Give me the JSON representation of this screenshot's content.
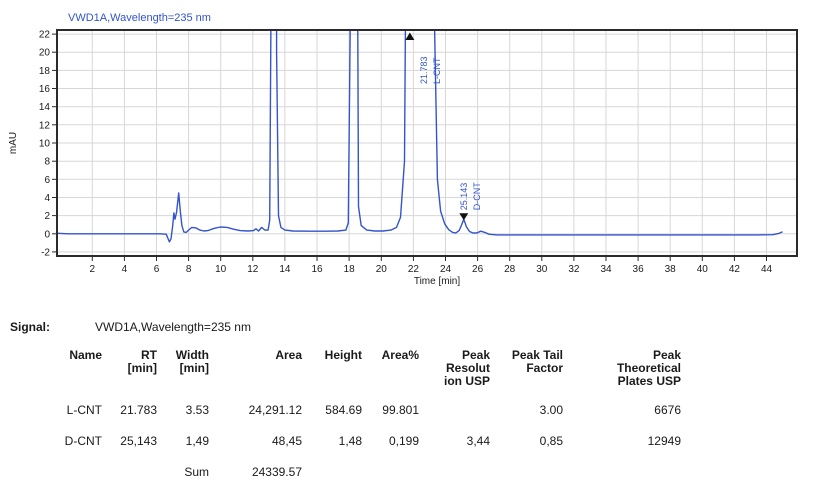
{
  "signal": {
    "label": "Signal:",
    "value": "VWD1A,Wavelength=235 nm"
  },
  "table": {
    "headers": [
      "Name",
      "RT\n[min]",
      "Width\n[min]",
      "Area",
      "Height",
      "Area%",
      "Peak\nResolut\nion USP",
      "Peak Tail\nFactor",
      "Peak\nTheoretical\nPlates USP"
    ],
    "rows": [
      [
        "L-CNT",
        "21.783",
        "3.53",
        "24,291.12",
        "584.69",
        "99.801",
        "",
        "3.00",
        "6676"
      ],
      [
        "D-CNT",
        "25,143",
        "1,49",
        "48,45",
        "1,48",
        "0,199",
        "3,44",
        "0,85",
        "12949"
      ]
    ],
    "sum_row": {
      "label": "Sum",
      "area": "24339.57"
    }
  },
  "chart_data": {
    "type": "line",
    "title": "VWD1A,Wavelength=235 nm",
    "xlabel": "Time [min]",
    "ylabel": "mAU",
    "xlim": [
      -0.2,
      45.9
    ],
    "ylim": [
      -2.45,
      22.45
    ],
    "x_ticks": [
      2,
      4,
      6,
      8,
      10,
      12,
      14,
      16,
      18,
      20,
      22,
      24,
      26,
      28,
      30,
      32,
      34,
      36,
      38,
      40,
      42,
      44
    ],
    "y_ticks": [
      -2,
      0,
      2,
      4,
      6,
      8,
      10,
      12,
      14,
      16,
      18,
      20,
      22
    ],
    "grid": true,
    "colors": {
      "trace": "#3354cc",
      "grid": "#d7d7d7",
      "frame": "#2b2b2b",
      "text": "#1a1a1a",
      "marker": "#111111"
    },
    "series": [
      {
        "name": "VWD1A,Wavelength=235 nm",
        "points": [
          [
            -0.15,
            0.05
          ],
          [
            0.5,
            0
          ],
          [
            1.5,
            0
          ],
          [
            2.5,
            0
          ],
          [
            3.5,
            0
          ],
          [
            4.5,
            0
          ],
          [
            5.5,
            0
          ],
          [
            6.2,
            0
          ],
          [
            6.6,
            -0.05
          ],
          [
            6.8,
            -0.9
          ],
          [
            6.9,
            -0.55
          ],
          [
            7.0,
            0.8
          ],
          [
            7.08,
            2.3
          ],
          [
            7.15,
            1.6
          ],
          [
            7.25,
            2.4
          ],
          [
            7.38,
            4.5
          ],
          [
            7.48,
            2.5
          ],
          [
            7.58,
            0.9
          ],
          [
            7.7,
            0.2
          ],
          [
            7.85,
            0.15
          ],
          [
            8.0,
            0.4
          ],
          [
            8.2,
            0.7
          ],
          [
            8.45,
            0.65
          ],
          [
            8.7,
            0.4
          ],
          [
            8.95,
            0.3
          ],
          [
            9.2,
            0.35
          ],
          [
            9.6,
            0.6
          ],
          [
            10.0,
            0.75
          ],
          [
            10.4,
            0.7
          ],
          [
            10.8,
            0.5
          ],
          [
            11.2,
            0.35
          ],
          [
            11.7,
            0.3
          ],
          [
            12.05,
            0.35
          ],
          [
            12.2,
            0.55
          ],
          [
            12.35,
            0.3
          ],
          [
            12.55,
            0.7
          ],
          [
            12.75,
            0.4
          ],
          [
            12.95,
            0.4
          ],
          [
            13.05,
            1.5
          ],
          [
            13.15,
            30
          ],
          [
            13.25,
            600
          ],
          [
            13.38,
            600
          ],
          [
            13.48,
            20
          ],
          [
            13.6,
            2
          ],
          [
            13.75,
            0.7
          ],
          [
            14.0,
            0.4
          ],
          [
            14.5,
            0.3
          ],
          [
            15.5,
            0.28
          ],
          [
            16.5,
            0.28
          ],
          [
            17.3,
            0.3
          ],
          [
            17.8,
            0.4
          ],
          [
            17.95,
            1.2
          ],
          [
            18.08,
            25
          ],
          [
            18.2,
            600
          ],
          [
            18.35,
            600
          ],
          [
            18.45,
            60
          ],
          [
            18.58,
            3
          ],
          [
            18.75,
            0.9
          ],
          [
            19.1,
            0.4
          ],
          [
            19.6,
            0.3
          ],
          [
            20.1,
            0.3
          ],
          [
            20.6,
            0.4
          ],
          [
            20.95,
            0.7
          ],
          [
            21.2,
            1.8
          ],
          [
            21.45,
            8
          ],
          [
            21.65,
            60
          ],
          [
            21.8,
            500
          ],
          [
            21.95,
            600
          ],
          [
            22.4,
            600
          ],
          [
            22.85,
            600
          ],
          [
            23.0,
            550
          ],
          [
            23.15,
            150
          ],
          [
            23.3,
            25
          ],
          [
            23.5,
            6
          ],
          [
            23.7,
            2.5
          ],
          [
            23.95,
            1.1
          ],
          [
            24.2,
            0.45
          ],
          [
            24.45,
            0.15
          ],
          [
            24.65,
            0.1
          ],
          [
            24.85,
            0.35
          ],
          [
            25.0,
            0.95
          ],
          [
            25.14,
            1.6
          ],
          [
            25.3,
            0.8
          ],
          [
            25.5,
            0.25
          ],
          [
            25.7,
            0.1
          ],
          [
            25.95,
            0.08
          ],
          [
            26.2,
            0.28
          ],
          [
            26.45,
            0.15
          ],
          [
            26.7,
            -0.05
          ],
          [
            27.2,
            -0.12
          ],
          [
            28.5,
            -0.13
          ],
          [
            30,
            -0.13
          ],
          [
            32,
            -0.13
          ],
          [
            34,
            -0.13
          ],
          [
            36,
            -0.13
          ],
          [
            38,
            -0.13
          ],
          [
            40,
            -0.13
          ],
          [
            42,
            -0.13
          ],
          [
            43.5,
            -0.13
          ],
          [
            44.4,
            -0.1
          ],
          [
            44.8,
            0.05
          ],
          [
            45.0,
            0.22
          ]
        ]
      }
    ],
    "annotations": [
      {
        "rt": 21.783,
        "rt_label": "21.783",
        "name_label": "L-CNT",
        "marker": "triangle-up",
        "clipped": true
      },
      {
        "rt": 25.143,
        "rt_label": "25.143",
        "name_label": "D-CNT",
        "marker": "triangle-down",
        "apex_mau": 1.6
      }
    ],
    "legend": false
  }
}
